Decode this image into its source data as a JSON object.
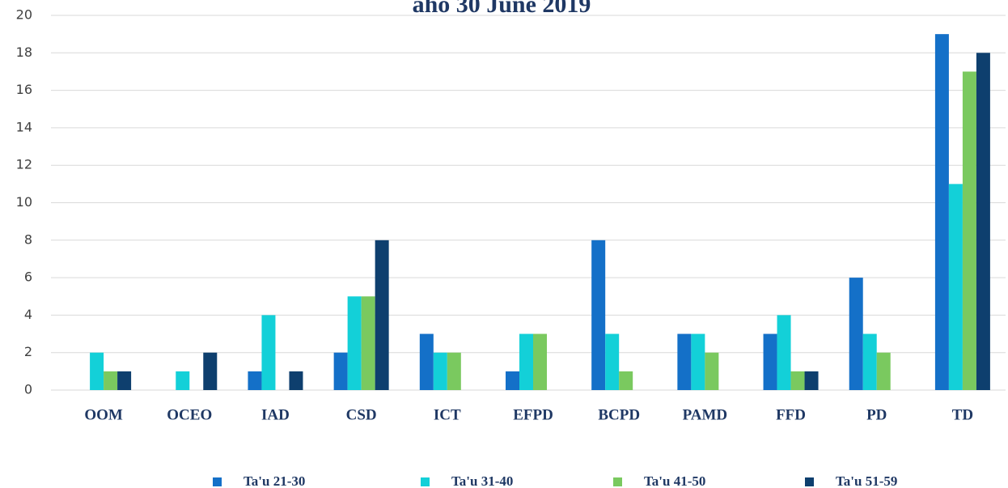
{
  "chart_data": {
    "type": "bar",
    "title": "aho 30 June 2019",
    "categories": [
      "OOM",
      "OCEO",
      "IAD",
      "CSD",
      "ICT",
      "EFPD",
      "BCPD",
      "PAMD",
      "FFD",
      "PD",
      "TD"
    ],
    "series": [
      {
        "name": "Ta'u 21-30",
        "color": "#1470c8",
        "values": [
          0,
          0,
          1,
          2,
          3,
          1,
          8,
          3,
          3,
          6,
          19
        ]
      },
      {
        "name": "Ta'u 31-40",
        "color": "#13d0d8",
        "values": [
          2,
          1,
          4,
          5,
          2,
          3,
          3,
          3,
          4,
          3,
          11
        ]
      },
      {
        "name": "Ta'u 41-50",
        "color": "#7ac95f",
        "values": [
          1,
          0,
          0,
          5,
          2,
          3,
          1,
          2,
          1,
          2,
          17
        ]
      },
      {
        "name": "Ta'u 51-59",
        "color": "#0e3f6e",
        "values": [
          1,
          2,
          1,
          8,
          0,
          0,
          0,
          0,
          1,
          0,
          18
        ]
      }
    ],
    "ylim": [
      0,
      20
    ],
    "yticks": [
      0,
      2,
      4,
      6,
      8,
      10,
      12,
      14,
      16,
      18,
      20
    ],
    "grid": true,
    "legend": "bottom"
  }
}
